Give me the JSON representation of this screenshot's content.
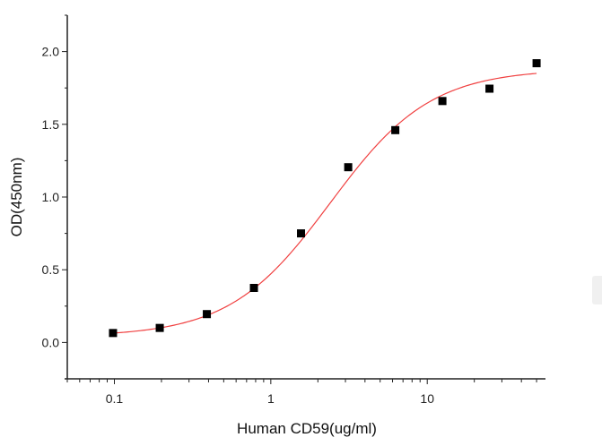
{
  "chart_data": {
    "type": "scatter",
    "title": "",
    "xlabel": "Human CD59(ug/ml)",
    "ylabel": "OD(450nm)",
    "xscale": "log",
    "xlim": [
      0.05,
      57
    ],
    "ylim": [
      -0.25,
      2.25
    ],
    "xticks": [
      0.1,
      1,
      10
    ],
    "xtick_labels": [
      "0.1",
      "1",
      "10"
    ],
    "yticks": [
      0.0,
      0.5,
      1.0,
      1.5,
      2.0
    ],
    "ytick_labels": [
      "0.0",
      "0.5",
      "1.0",
      "1.5",
      "2.0"
    ],
    "grid": false,
    "series": [
      {
        "marker": "square",
        "color": "#000000",
        "x": [
          0.098,
          0.195,
          0.39,
          0.78,
          1.56,
          3.125,
          6.25,
          12.5,
          25,
          50
        ],
        "y": [
          0.065,
          0.1,
          0.195,
          0.375,
          0.75,
          1.205,
          1.46,
          1.66,
          1.745,
          1.92
        ]
      }
    ],
    "fit": {
      "type": "logistic4",
      "color": "#f04040",
      "bottom": 0.04,
      "top": 1.88,
      "ec50": 2.4,
      "hill": 1.35,
      "x_range": [
        0.098,
        50
      ]
    }
  }
}
